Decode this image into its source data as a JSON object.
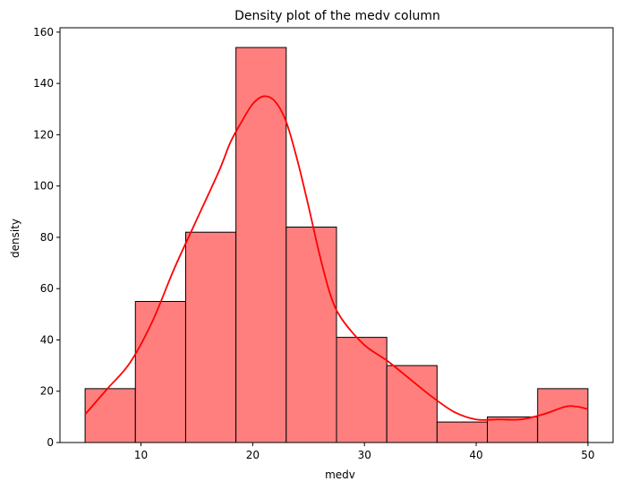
{
  "chart_data": {
    "type": "bar",
    "title": "Density plot of the medv column",
    "xlabel": "medv",
    "ylabel": "density",
    "xlim": [
      2.75,
      52.25
    ],
    "ylim": [
      0,
      161.7
    ],
    "xticks": [
      10,
      20,
      30,
      40,
      50
    ],
    "yticks": [
      0,
      20,
      40,
      60,
      80,
      100,
      120,
      140,
      160
    ],
    "bins": [
      {
        "x0": 5.0,
        "x1": 9.5,
        "value": 21
      },
      {
        "x0": 9.5,
        "x1": 14.0,
        "value": 55
      },
      {
        "x0": 14.0,
        "x1": 18.5,
        "value": 82
      },
      {
        "x0": 18.5,
        "x1": 23.0,
        "value": 154
      },
      {
        "x0": 23.0,
        "x1": 27.5,
        "value": 84
      },
      {
        "x0": 27.5,
        "x1": 32.0,
        "value": 41
      },
      {
        "x0": 32.0,
        "x1": 36.5,
        "value": 30
      },
      {
        "x0": 36.5,
        "x1": 41.0,
        "value": 8
      },
      {
        "x0": 41.0,
        "x1": 45.5,
        "value": 10
      },
      {
        "x0": 45.5,
        "x1": 50.0,
        "value": 21
      }
    ],
    "kde": {
      "x": [
        5,
        7,
        9,
        11,
        13,
        15,
        17,
        18,
        19,
        20,
        21,
        22,
        23,
        24,
        25,
        26,
        27,
        28,
        30,
        32,
        34,
        36,
        38,
        40,
        42,
        44,
        46,
        48,
        49,
        50
      ],
      "y": [
        11,
        21,
        31,
        47,
        68,
        87,
        106,
        117,
        125,
        132,
        135,
        133,
        125,
        110,
        92,
        73,
        57,
        48,
        38,
        32,
        25,
        18,
        12,
        9,
        9,
        9,
        11,
        14,
        14,
        13
      ]
    },
    "colors": {
      "bar_fill": "#ff7f7f",
      "bar_edge": "#000000",
      "kde_line": "#ff0000"
    },
    "grid": false
  }
}
